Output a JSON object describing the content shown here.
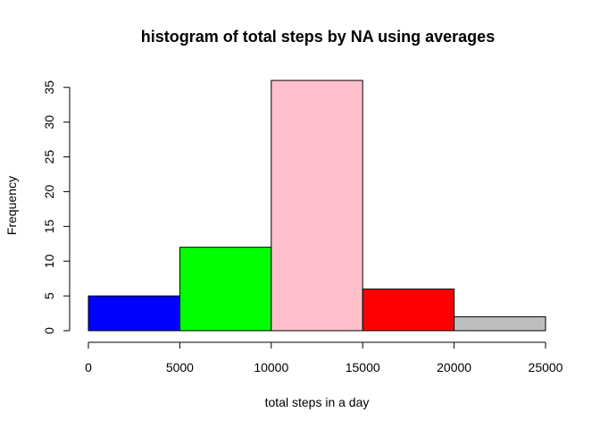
{
  "chart_data": {
    "type": "bar",
    "title": "histogram of total steps by NA using averages",
    "xlabel": "total steps in a day",
    "ylabel": "Frequency",
    "bins": [
      {
        "from": 0,
        "to": 5000,
        "count": 5,
        "color": "#0000ff"
      },
      {
        "from": 5000,
        "to": 10000,
        "count": 12,
        "color": "#00ff00"
      },
      {
        "from": 10000,
        "to": 15000,
        "count": 36,
        "color": "#ffc0cb"
      },
      {
        "from": 15000,
        "to": 20000,
        "count": 6,
        "color": "#ff0000"
      },
      {
        "from": 20000,
        "to": 25000,
        "count": 2,
        "color": "#bebebe"
      }
    ],
    "x_ticks": [
      "0",
      "5000",
      "10000",
      "15000",
      "20000",
      "25000"
    ],
    "y_ticks": [
      "0",
      "5",
      "10",
      "15",
      "20",
      "25",
      "30",
      "35"
    ],
    "xlim": [
      0,
      25000
    ],
    "ylim": [
      0,
      36
    ],
    "grid": false,
    "legend": "none"
  }
}
